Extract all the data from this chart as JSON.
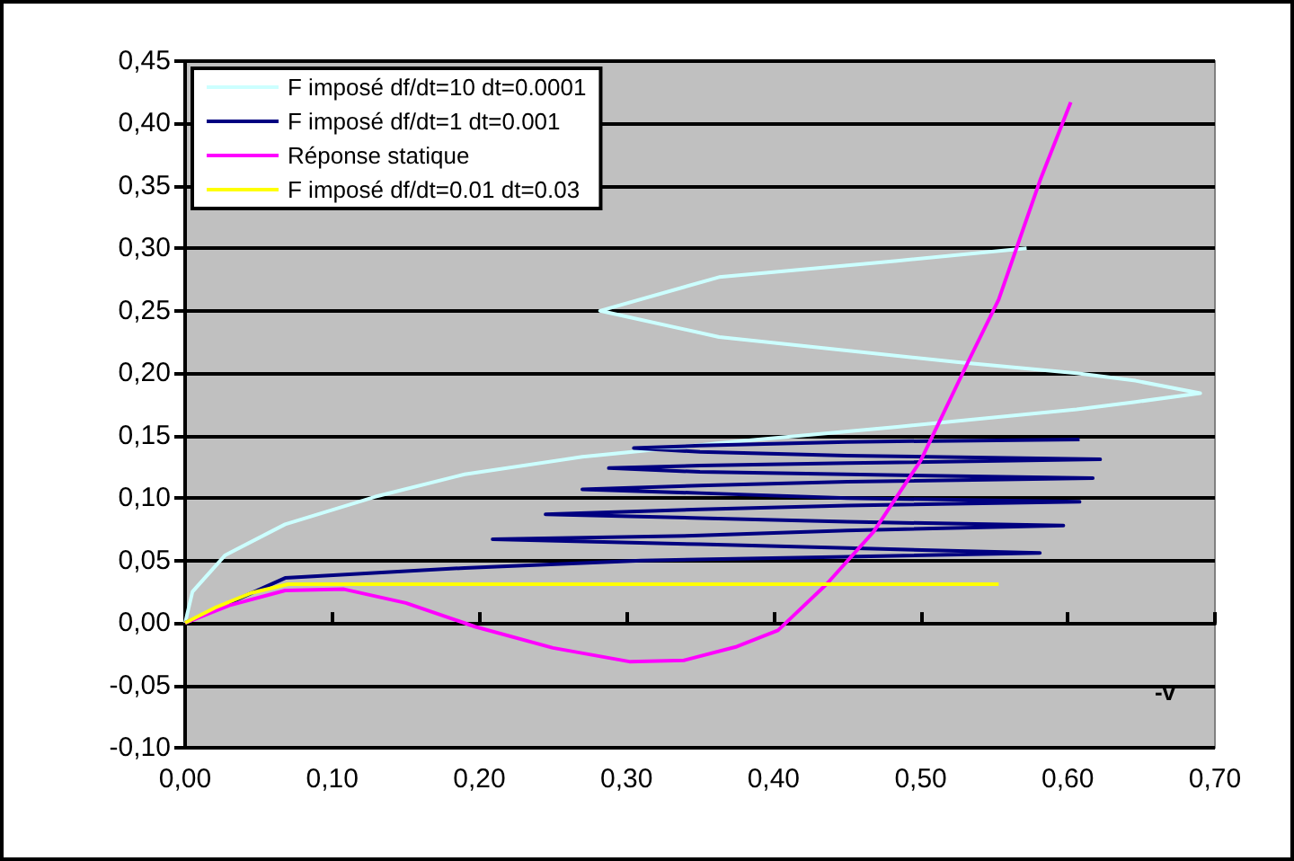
{
  "chart_data": {
    "type": "line",
    "xlabel": "-v",
    "xlim": [
      0,
      0.7
    ],
    "ylim": [
      -0.1,
      0.45
    ],
    "xticks": [
      {
        "value": 0,
        "label": "0,00"
      },
      {
        "value": 0.1,
        "label": "0,10"
      },
      {
        "value": 0.2,
        "label": "0,20"
      },
      {
        "value": 0.3,
        "label": "0,30"
      },
      {
        "value": 0.4,
        "label": "0,40"
      },
      {
        "value": 0.5,
        "label": "0,50"
      },
      {
        "value": 0.6,
        "label": "0,60"
      },
      {
        "value": 0.7,
        "label": "0,70"
      }
    ],
    "yticks": [
      {
        "value": -0.1,
        "label": "-0,10"
      },
      {
        "value": -0.05,
        "label": "-0,05"
      },
      {
        "value": 0,
        "label": "0,00"
      },
      {
        "value": 0.05,
        "label": "0,05"
      },
      {
        "value": 0.1,
        "label": "0,10"
      },
      {
        "value": 0.15,
        "label": "0,15"
      },
      {
        "value": 0.2,
        "label": "0,20"
      },
      {
        "value": 0.25,
        "label": "0,25"
      },
      {
        "value": 0.3,
        "label": "0,30"
      },
      {
        "value": 0.35,
        "label": "0,35"
      },
      {
        "value": 0.4,
        "label": "0,40"
      },
      {
        "value": 0.45,
        "label": "0,45"
      }
    ],
    "grid": "y",
    "legend": "top left",
    "series": [
      {
        "name": "F imposé df/dt=10 dt=0.0001",
        "color": "#ccffff",
        "x": [
          0,
          0.005,
          0.027,
          0.068,
          0.129,
          0.19,
          0.27,
          0.363,
          0.484,
          0.606,
          0.646,
          0.69,
          0.646,
          0.606,
          0.524,
          0.363,
          0.282,
          0.363,
          0.484,
          0.572
        ],
        "values": [
          0,
          0.025,
          0.054,
          0.079,
          0.101,
          0.119,
          0.133,
          0.144,
          0.157,
          0.171,
          0.177,
          0.184,
          0.194,
          0.2,
          0.209,
          0.229,
          0.25,
          0.277,
          0.29,
          0.3
        ]
      },
      {
        "name": "F imposé df/dt=1 dt=0.001",
        "color": "#000080",
        "x": [
          0,
          0.068,
          0.19,
          0.31,
          0.45,
          0.581,
          0.45,
          0.35,
          0.209,
          0.35,
          0.45,
          0.597,
          0.45,
          0.35,
          0.245,
          0.35,
          0.45,
          0.608,
          0.45,
          0.35,
          0.27,
          0.35,
          0.45,
          0.617,
          0.45,
          0.35,
          0.288,
          0.35,
          0.45,
          0.622,
          0.45,
          0.35,
          0.305,
          0.35,
          0.45,
          0.608
        ],
        "values": [
          0,
          0.036,
          0.044,
          0.05,
          0.053,
          0.056,
          0.06,
          0.063,
          0.067,
          0.07,
          0.074,
          0.078,
          0.081,
          0.084,
          0.087,
          0.091,
          0.094,
          0.097,
          0.1,
          0.104,
          0.107,
          0.11,
          0.113,
          0.116,
          0.119,
          0.121,
          0.124,
          0.126,
          0.128,
          0.131,
          0.134,
          0.137,
          0.14,
          0.142,
          0.145,
          0.147
        ]
      },
      {
        "name": "Réponse statique",
        "color": "#ff00ff",
        "x": [
          0,
          0.03,
          0.068,
          0.108,
          0.15,
          0.197,
          0.25,
          0.302,
          0.339,
          0.375,
          0.403,
          0.436,
          0.468,
          0.5,
          0.533,
          0.553,
          0.581,
          0.602
        ],
        "values": [
          0,
          0.014,
          0.026,
          0.027,
          0.016,
          -0.003,
          -0.02,
          -0.031,
          -0.03,
          -0.019,
          -0.006,
          0.031,
          0.073,
          0.13,
          0.211,
          0.259,
          0.354,
          0.417
        ]
      },
      {
        "name": "F imposé df/dt=0.01 dt=0.03",
        "color": "#ffff00",
        "x": [
          0,
          0.02,
          0.045,
          0.07,
          0.2,
          0.4,
          0.553
        ],
        "values": [
          0,
          0.012,
          0.024,
          0.031,
          0.031,
          0.031,
          0.031
        ]
      }
    ]
  }
}
